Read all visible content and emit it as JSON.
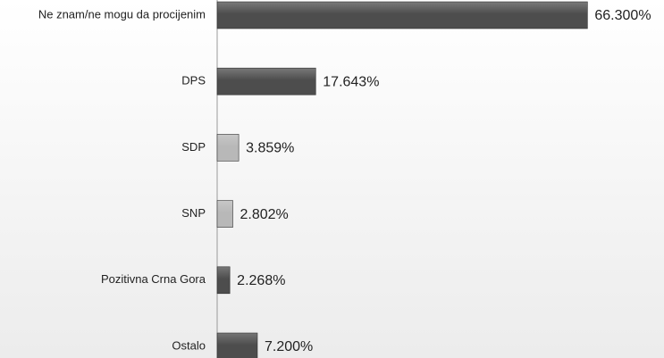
{
  "chart_data": {
    "type": "hbar",
    "categories": [
      "Ne znam/ne mogu da procijenim",
      "DPS",
      "SDP",
      "SNP",
      "Pozitivna Crna Gora",
      "Ostalo"
    ],
    "values": [
      66.3,
      17.643,
      3.859,
      2.802,
      2.268,
      7.2
    ],
    "value_labels": [
      "66.300%",
      "17.643%",
      "3.859%",
      "2.802%",
      "2.268%",
      "7.200%"
    ],
    "colors": [
      "#4d4d4d",
      "#4d4d4d",
      "#b8b8b8",
      "#b8b8b8",
      "#4d4d4d",
      "#4d4d4d"
    ],
    "xlim": [
      0,
      80
    ]
  }
}
